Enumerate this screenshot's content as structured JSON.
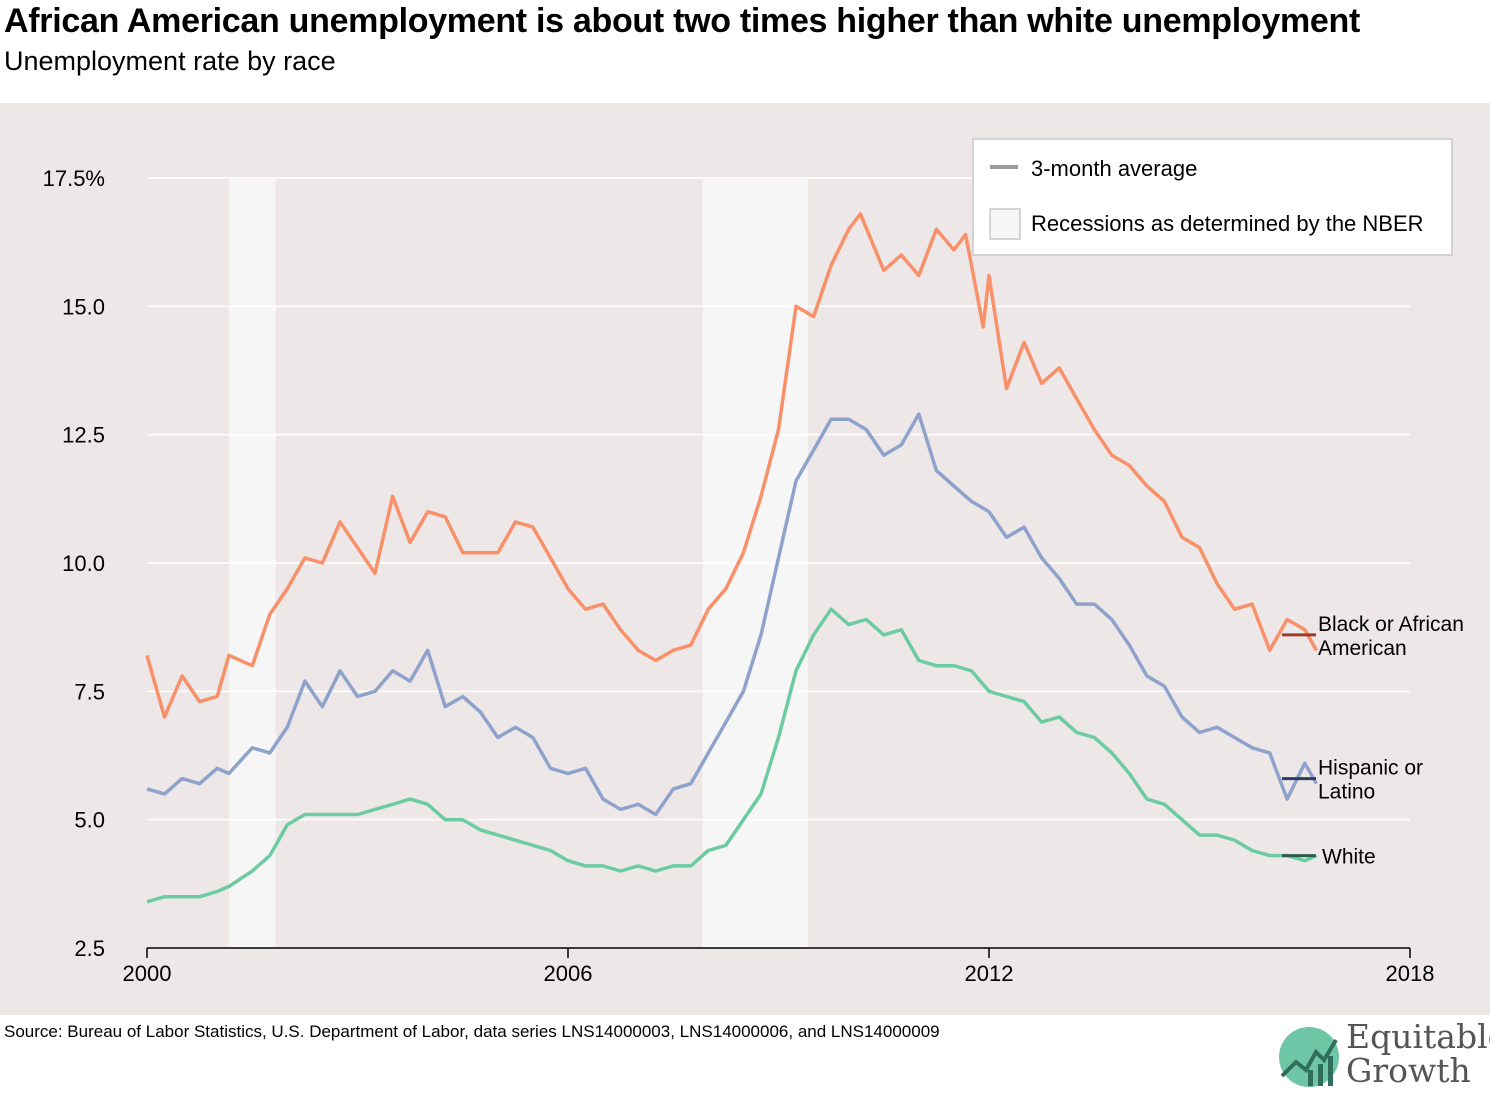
{
  "header": {
    "title": "African American unemployment is about two times higher than white unemployment",
    "subtitle": "Unemployment rate by race"
  },
  "footer": {
    "source": "Source: Bureau of Labor Statistics, U.S. Department of Labor, data series LNS14000003, LNS14000006, and LNS14000009",
    "logo_line1": "Equitable",
    "logo_line2": "Growth"
  },
  "legend": {
    "avg_label": "3-month average",
    "recession_label": "Recessions as determined by the NBER"
  },
  "colors": {
    "background": "#ede8e7",
    "recession": "#f6f6f6",
    "black": "#f8906a",
    "hispanic": "#8fa2cc",
    "white": "#6ccba1",
    "black_avg": "#9e3a2c",
    "hispanic_avg": "#283f63",
    "white_avg": "#2b5d4d"
  },
  "chart_data": {
    "type": "line",
    "title": "African American unemployment is about two times higher than white unemployment",
    "subtitle": "Unemployment rate by race",
    "x_ticks": [
      "2000",
      "2006",
      "2012",
      "2018"
    ],
    "y_ticks": [
      "2.5",
      "5.0",
      "7.5",
      "10.0",
      "12.5",
      "15.0",
      "17.5%"
    ],
    "xlim": [
      "2000-01",
      "2018-01"
    ],
    "ylim": [
      2.5,
      17.5
    ],
    "grid": true,
    "legend_position": "top-right",
    "recessions": [
      [
        "2001-03",
        "2001-11"
      ],
      [
        "2007-12",
        "2009-06"
      ]
    ],
    "series": [
      {
        "name": "Black or African American",
        "label_lines": [
          "Black or African",
          "American"
        ],
        "three_month_avg": 8.6,
        "points": [
          [
            "2000-01",
            8.2
          ],
          [
            "2000-04",
            7.0
          ],
          [
            "2000-07",
            7.8
          ],
          [
            "2000-10",
            7.3
          ],
          [
            "2001-01",
            7.4
          ],
          [
            "2001-03",
            8.2
          ],
          [
            "2001-07",
            8.0
          ],
          [
            "2001-10",
            9.0
          ],
          [
            "2002-01",
            9.5
          ],
          [
            "2002-04",
            10.1
          ],
          [
            "2002-07",
            10.0
          ],
          [
            "2002-10",
            10.8
          ],
          [
            "2003-01",
            10.3
          ],
          [
            "2003-04",
            9.8
          ],
          [
            "2003-07",
            11.3
          ],
          [
            "2003-10",
            10.4
          ],
          [
            "2004-01",
            11.0
          ],
          [
            "2004-04",
            10.9
          ],
          [
            "2004-07",
            10.2
          ],
          [
            "2004-10",
            10.2
          ],
          [
            "2005-01",
            10.2
          ],
          [
            "2005-04",
            10.8
          ],
          [
            "2005-07",
            10.7
          ],
          [
            "2005-10",
            10.1
          ],
          [
            "2006-01",
            9.5
          ],
          [
            "2006-04",
            9.1
          ],
          [
            "2006-07",
            9.2
          ],
          [
            "2006-10",
            8.7
          ],
          [
            "2007-01",
            8.3
          ],
          [
            "2007-04",
            8.1
          ],
          [
            "2007-07",
            8.3
          ],
          [
            "2007-10",
            8.4
          ],
          [
            "2008-01",
            9.1
          ],
          [
            "2008-04",
            9.5
          ],
          [
            "2008-07",
            10.2
          ],
          [
            "2008-10",
            11.3
          ],
          [
            "2009-01",
            12.6
          ],
          [
            "2009-04",
            15.0
          ],
          [
            "2009-07",
            14.8
          ],
          [
            "2009-10",
            15.8
          ],
          [
            "2010-01",
            16.5
          ],
          [
            "2010-03",
            16.8
          ],
          [
            "2010-07",
            15.7
          ],
          [
            "2010-10",
            16.0
          ],
          [
            "2011-01",
            15.6
          ],
          [
            "2011-04",
            16.5
          ],
          [
            "2011-07",
            16.1
          ],
          [
            "2011-09",
            16.4
          ],
          [
            "2011-12",
            14.6
          ],
          [
            "2012-01",
            15.6
          ],
          [
            "2012-04",
            13.4
          ],
          [
            "2012-07",
            14.3
          ],
          [
            "2012-10",
            13.5
          ],
          [
            "2013-01",
            13.8
          ],
          [
            "2013-04",
            13.2
          ],
          [
            "2013-07",
            12.6
          ],
          [
            "2013-10",
            12.1
          ],
          [
            "2014-01",
            11.9
          ],
          [
            "2014-04",
            11.5
          ],
          [
            "2014-07",
            11.2
          ],
          [
            "2014-10",
            10.5
          ],
          [
            "2015-01",
            10.3
          ],
          [
            "2015-04",
            9.6
          ],
          [
            "2015-07",
            9.1
          ],
          [
            "2015-10",
            9.2
          ],
          [
            "2016-01",
            8.3
          ],
          [
            "2016-04",
            8.9
          ],
          [
            "2016-07",
            8.7
          ],
          [
            "2016-09",
            8.3
          ]
        ]
      },
      {
        "name": "Hispanic or Latino",
        "label_lines": [
          "Hispanic or",
          "Latino"
        ],
        "three_month_avg": 5.8,
        "points": [
          [
            "2000-01",
            5.6
          ],
          [
            "2000-04",
            5.5
          ],
          [
            "2000-07",
            5.8
          ],
          [
            "2000-10",
            5.7
          ],
          [
            "2001-01",
            6.0
          ],
          [
            "2001-03",
            5.9
          ],
          [
            "2001-07",
            6.4
          ],
          [
            "2001-10",
            6.3
          ],
          [
            "2002-01",
            6.8
          ],
          [
            "2002-04",
            7.7
          ],
          [
            "2002-07",
            7.2
          ],
          [
            "2002-10",
            7.9
          ],
          [
            "2003-01",
            7.4
          ],
          [
            "2003-04",
            7.5
          ],
          [
            "2003-07",
            7.9
          ],
          [
            "2003-10",
            7.7
          ],
          [
            "2004-01",
            8.3
          ],
          [
            "2004-04",
            7.2
          ],
          [
            "2004-07",
            7.4
          ],
          [
            "2004-10",
            7.1
          ],
          [
            "2005-01",
            6.6
          ],
          [
            "2005-04",
            6.8
          ],
          [
            "2005-07",
            6.6
          ],
          [
            "2005-10",
            6.0
          ],
          [
            "2006-01",
            5.9
          ],
          [
            "2006-04",
            6.0
          ],
          [
            "2006-07",
            5.4
          ],
          [
            "2006-10",
            5.2
          ],
          [
            "2007-01",
            5.3
          ],
          [
            "2007-04",
            5.1
          ],
          [
            "2007-07",
            5.6
          ],
          [
            "2007-10",
            5.7
          ],
          [
            "2008-01",
            6.3
          ],
          [
            "2008-04",
            6.9
          ],
          [
            "2008-07",
            7.5
          ],
          [
            "2008-10",
            8.6
          ],
          [
            "2009-01",
            10.1
          ],
          [
            "2009-04",
            11.6
          ],
          [
            "2009-07",
            12.2
          ],
          [
            "2009-10",
            12.8
          ],
          [
            "2010-01",
            12.8
          ],
          [
            "2010-04",
            12.6
          ],
          [
            "2010-07",
            12.1
          ],
          [
            "2010-10",
            12.3
          ],
          [
            "2011-01",
            12.9
          ],
          [
            "2011-04",
            11.8
          ],
          [
            "2011-07",
            11.5
          ],
          [
            "2011-10",
            11.2
          ],
          [
            "2012-01",
            11.0
          ],
          [
            "2012-04",
            10.5
          ],
          [
            "2012-07",
            10.7
          ],
          [
            "2012-10",
            10.1
          ],
          [
            "2013-01",
            9.7
          ],
          [
            "2013-04",
            9.2
          ],
          [
            "2013-07",
            9.2
          ],
          [
            "2013-10",
            8.9
          ],
          [
            "2014-01",
            8.4
          ],
          [
            "2014-04",
            7.8
          ],
          [
            "2014-07",
            7.6
          ],
          [
            "2014-10",
            7.0
          ],
          [
            "2015-01",
            6.7
          ],
          [
            "2015-04",
            6.8
          ],
          [
            "2015-07",
            6.6
          ],
          [
            "2015-10",
            6.4
          ],
          [
            "2016-01",
            6.3
          ],
          [
            "2016-04",
            5.4
          ],
          [
            "2016-07",
            6.1
          ],
          [
            "2016-09",
            5.7
          ]
        ]
      },
      {
        "name": "White",
        "label_lines": [
          "White"
        ],
        "three_month_avg": 4.3,
        "points": [
          [
            "2000-01",
            3.4
          ],
          [
            "2000-04",
            3.5
          ],
          [
            "2000-07",
            3.5
          ],
          [
            "2000-10",
            3.5
          ],
          [
            "2001-01",
            3.6
          ],
          [
            "2001-03",
            3.7
          ],
          [
            "2001-07",
            4.0
          ],
          [
            "2001-10",
            4.3
          ],
          [
            "2002-01",
            4.9
          ],
          [
            "2002-04",
            5.1
          ],
          [
            "2002-07",
            5.1
          ],
          [
            "2002-10",
            5.1
          ],
          [
            "2003-01",
            5.1
          ],
          [
            "2003-04",
            5.2
          ],
          [
            "2003-07",
            5.3
          ],
          [
            "2003-10",
            5.4
          ],
          [
            "2004-01",
            5.3
          ],
          [
            "2004-04",
            5.0
          ],
          [
            "2004-07",
            5.0
          ],
          [
            "2004-10",
            4.8
          ],
          [
            "2005-01",
            4.7
          ],
          [
            "2005-04",
            4.6
          ],
          [
            "2005-07",
            4.5
          ],
          [
            "2005-10",
            4.4
          ],
          [
            "2006-01",
            4.2
          ],
          [
            "2006-04",
            4.1
          ],
          [
            "2006-07",
            4.1
          ],
          [
            "2006-10",
            4.0
          ],
          [
            "2007-01",
            4.1
          ],
          [
            "2007-04",
            4.0
          ],
          [
            "2007-07",
            4.1
          ],
          [
            "2007-10",
            4.1
          ],
          [
            "2008-01",
            4.4
          ],
          [
            "2008-04",
            4.5
          ],
          [
            "2008-07",
            5.0
          ],
          [
            "2008-10",
            5.5
          ],
          [
            "2009-01",
            6.6
          ],
          [
            "2009-04",
            7.9
          ],
          [
            "2009-07",
            8.6
          ],
          [
            "2009-10",
            9.1
          ],
          [
            "2010-01",
            8.8
          ],
          [
            "2010-04",
            8.9
          ],
          [
            "2010-07",
            8.6
          ],
          [
            "2010-10",
            8.7
          ],
          [
            "2011-01",
            8.1
          ],
          [
            "2011-04",
            8.0
          ],
          [
            "2011-07",
            8.0
          ],
          [
            "2011-10",
            7.9
          ],
          [
            "2012-01",
            7.5
          ],
          [
            "2012-04",
            7.4
          ],
          [
            "2012-07",
            7.3
          ],
          [
            "2012-10",
            6.9
          ],
          [
            "2013-01",
            7.0
          ],
          [
            "2013-04",
            6.7
          ],
          [
            "2013-07",
            6.6
          ],
          [
            "2013-10",
            6.3
          ],
          [
            "2014-01",
            5.9
          ],
          [
            "2014-04",
            5.4
          ],
          [
            "2014-07",
            5.3
          ],
          [
            "2014-10",
            5.0
          ],
          [
            "2015-01",
            4.7
          ],
          [
            "2015-04",
            4.7
          ],
          [
            "2015-07",
            4.6
          ],
          [
            "2015-10",
            4.4
          ],
          [
            "2016-01",
            4.3
          ],
          [
            "2016-04",
            4.3
          ],
          [
            "2016-07",
            4.2
          ],
          [
            "2016-09",
            4.3
          ]
        ]
      }
    ]
  }
}
